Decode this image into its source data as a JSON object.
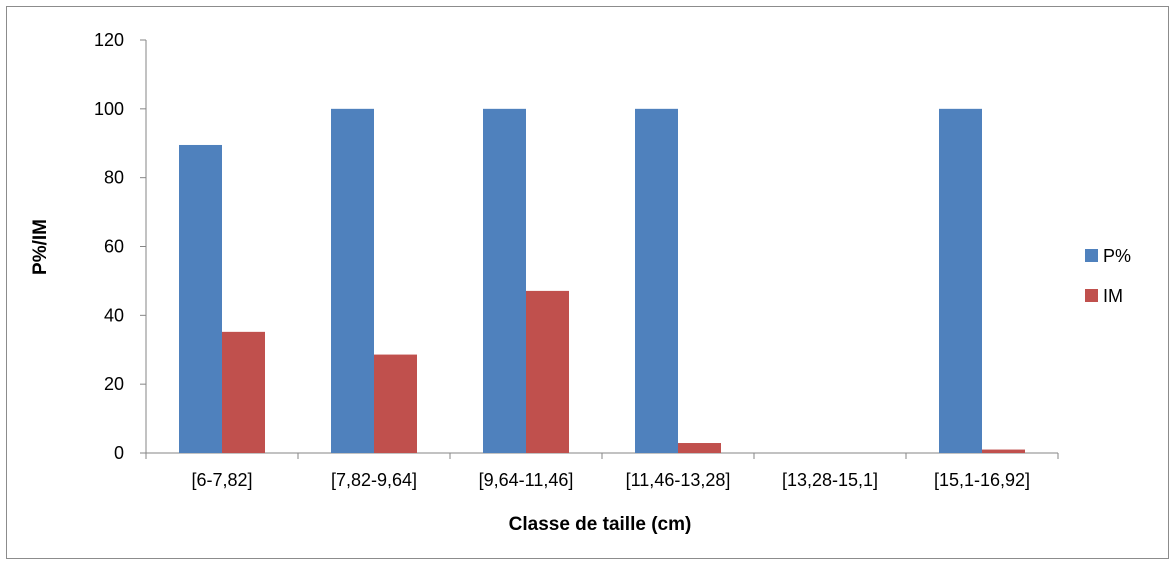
{
  "chart_data": {
    "type": "bar",
    "categories": [
      "[6-7,82]",
      "[7,82-9,64]",
      "[9,64-11,46]",
      "[11,46-13,28]",
      "[13,28-15,1]",
      "[15,1-16,92]"
    ],
    "series": [
      {
        "name": "P%",
        "values": [
          89.5,
          100,
          100,
          100,
          0,
          100
        ],
        "color": "#4f81bd"
      },
      {
        "name": "IM",
        "values": [
          35.2,
          28.6,
          47.1,
          2.9,
          0,
          1.0
        ],
        "color": "#c0504d"
      }
    ],
    "title": "",
    "xlabel": "Classe de taille (cm)",
    "ylabel": "P%/IM",
    "ylim": [
      0,
      120
    ],
    "yticks": [
      0,
      20,
      40,
      60,
      80,
      100,
      120
    ],
    "grid": false,
    "legend_position": "right"
  }
}
